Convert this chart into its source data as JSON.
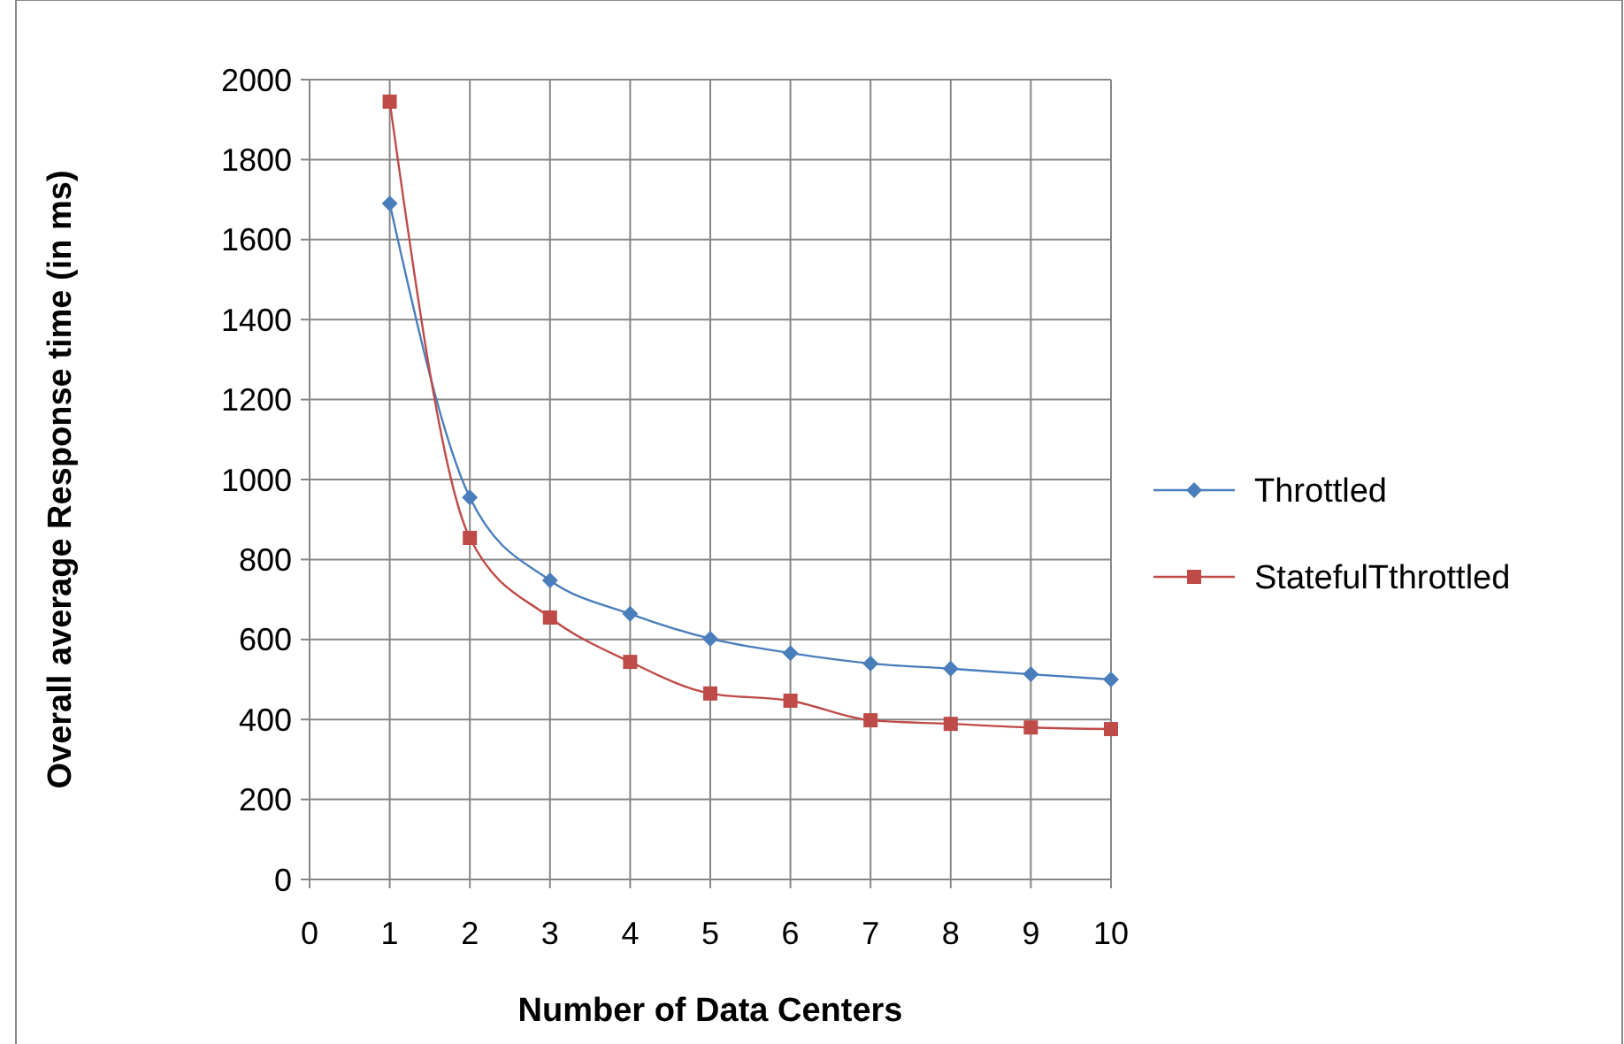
{
  "chart_data": {
    "type": "line",
    "xlabel": "Number of Data Centers",
    "ylabel": "Overall average Response time (in ms)",
    "x": [
      1,
      2,
      3,
      4,
      5,
      6,
      7,
      8,
      9,
      10
    ],
    "series": [
      {
        "name": "Throttled",
        "color": "#4a7ebb",
        "marker": "diamond",
        "values": [
          1690,
          955,
          748,
          664,
          602,
          566,
          540,
          527,
          513,
          500
        ]
      },
      {
        "name": "StatefulTthrottled",
        "color": "#be4b48",
        "marker": "square",
        "values": [
          1945,
          854,
          655,
          544,
          465,
          447,
          398,
          389,
          380,
          376
        ]
      }
    ],
    "xlim": [
      0,
      10
    ],
    "xticks": [
      0,
      1,
      2,
      3,
      4,
      5,
      6,
      7,
      8,
      9,
      10
    ],
    "ylim": [
      0,
      2000
    ],
    "yticks": [
      0,
      200,
      400,
      600,
      800,
      1000,
      1200,
      1400,
      1600,
      1800,
      2000
    ],
    "grid": true,
    "legend": "right",
    "line_style": "solid"
  }
}
